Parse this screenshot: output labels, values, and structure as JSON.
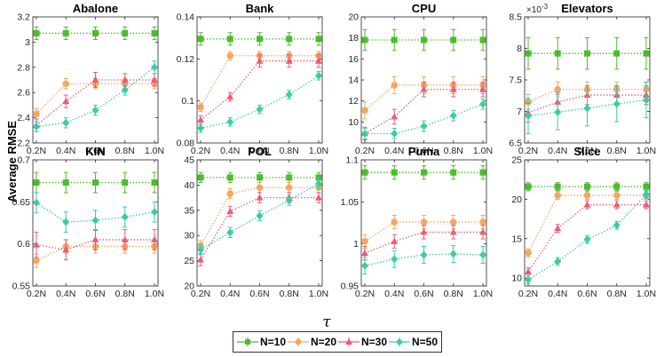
{
  "y_axis_label": "Average RMSE",
  "x_axis_label": "τ",
  "legend": [
    {
      "label": "N=10",
      "color": "#4dbb2e",
      "marker": "square"
    },
    {
      "label": "N=20",
      "color": "#f2a864",
      "marker": "circle"
    },
    {
      "label": "N=30",
      "color": "#ea5d77",
      "marker": "triangle"
    },
    {
      "label": "N=50",
      "color": "#3ccca4",
      "marker": "diamond"
    }
  ],
  "chart_data": [
    {
      "type": "line",
      "title": "Abalone",
      "x": [
        "0.2N",
        "0.4N",
        "0.6N",
        "0.8N",
        "1.0N"
      ],
      "ylim": [
        2.2,
        3.2
      ],
      "yticks": [
        "2.2",
        "2.4",
        "2.6",
        "2.8",
        "3",
        "3.2"
      ],
      "ytick_values": [
        2.2,
        2.4,
        2.6,
        2.8,
        3.0,
        3.2
      ],
      "series": [
        {
          "name": "N=10",
          "values": [
            3.07,
            3.07,
            3.07,
            3.07,
            3.07
          ],
          "err": [
            0.05,
            0.05,
            0.05,
            0.05,
            0.05
          ]
        },
        {
          "name": "N=20",
          "values": [
            2.43,
            2.67,
            2.67,
            2.67,
            2.67
          ],
          "err": [
            0.04,
            0.04,
            0.04,
            0.04,
            0.04
          ]
        },
        {
          "name": "N=30",
          "values": [
            2.34,
            2.53,
            2.7,
            2.7,
            2.7
          ],
          "err": [
            0.05,
            0.05,
            0.06,
            0.05,
            0.05
          ]
        },
        {
          "name": "N=50",
          "values": [
            2.33,
            2.36,
            2.46,
            2.62,
            2.8
          ],
          "err": [
            0.04,
            0.04,
            0.04,
            0.04,
            0.05
          ]
        }
      ]
    },
    {
      "type": "line",
      "title": "Bank",
      "x": [
        "0.2N",
        "0.4N",
        "0.6N",
        "0.8N",
        "1.0N"
      ],
      "ylim": [
        0.08,
        0.14
      ],
      "yticks": [
        "0.08",
        "0.1",
        "0.12",
        "0.14"
      ],
      "ytick_values": [
        0.08,
        0.1,
        0.12,
        0.14
      ],
      "series": [
        {
          "name": "N=10",
          "values": [
            0.1295,
            0.1295,
            0.1295,
            0.1295,
            0.1295
          ],
          "err": [
            0.003,
            0.003,
            0.003,
            0.003,
            0.003
          ]
        },
        {
          "name": "N=20",
          "values": [
            0.097,
            0.1215,
            0.1215,
            0.1215,
            0.1215
          ],
          "err": [
            0.002,
            0.002,
            0.002,
            0.002,
            0.002
          ]
        },
        {
          "name": "N=30",
          "values": [
            0.091,
            0.102,
            0.119,
            0.119,
            0.119
          ],
          "err": [
            0.002,
            0.002,
            0.003,
            0.003,
            0.003
          ]
        },
        {
          "name": "N=50",
          "values": [
            0.087,
            0.09,
            0.096,
            0.103,
            0.112
          ],
          "err": [
            0.002,
            0.002,
            0.002,
            0.002,
            0.002
          ]
        }
      ]
    },
    {
      "type": "line",
      "title": "CPU",
      "x": [
        "0.2N",
        "0.4N",
        "0.6N",
        "0.8N",
        "1.0N"
      ],
      "ylim": [
        8,
        20
      ],
      "yticks": [
        "10",
        "12",
        "14",
        "16",
        "18",
        "20"
      ],
      "ytick_values": [
        10,
        12,
        14,
        16,
        18,
        20
      ],
      "series": [
        {
          "name": "N=10",
          "values": [
            17.8,
            17.8,
            17.8,
            17.8,
            17.8
          ],
          "err": [
            1.0,
            1.0,
            1.0,
            1.0,
            1.0
          ]
        },
        {
          "name": "N=20",
          "values": [
            11.1,
            13.5,
            13.5,
            13.5,
            13.5
          ],
          "err": [
            0.8,
            0.8,
            0.8,
            0.8,
            0.8
          ]
        },
        {
          "name": "N=30",
          "values": [
            8.9,
            10.5,
            13.1,
            13.1,
            13.1
          ],
          "err": [
            0.6,
            0.7,
            0.7,
            0.7,
            0.7
          ]
        },
        {
          "name": "N=50",
          "values": [
            8.9,
            8.9,
            9.6,
            10.6,
            11.7
          ],
          "err": [
            0.5,
            0.5,
            0.5,
            0.5,
            0.5
          ]
        }
      ]
    },
    {
      "type": "line",
      "title": "Elevators",
      "x": [
        "0.2N",
        "0.4N",
        "0.6N",
        "0.8N",
        "1.0N"
      ],
      "ylim": [
        6.5,
        8.5
      ],
      "yticks": [
        "6.5",
        "7",
        "7.5",
        "8",
        "8.5"
      ],
      "ytick_values": [
        6.5,
        7.0,
        7.5,
        8.0,
        8.5
      ],
      "y_multiplier": "×10",
      "series": [
        {
          "name": "N=10",
          "values": [
            7.92,
            7.92,
            7.92,
            7.92,
            7.92
          ],
          "err": [
            0.25,
            0.25,
            0.25,
            0.25,
            0.25
          ]
        },
        {
          "name": "N=20",
          "values": [
            7.15,
            7.35,
            7.35,
            7.35,
            7.35
          ],
          "err": [
            0.12,
            0.12,
            0.12,
            0.12,
            0.12
          ]
        },
        {
          "name": "N=30",
          "values": [
            6.98,
            7.15,
            7.26,
            7.26,
            7.26
          ],
          "err": [
            0.15,
            0.15,
            0.15,
            0.15,
            0.15
          ]
        },
        {
          "name": "N=50",
          "values": [
            6.93,
            6.99,
            7.05,
            7.12,
            7.18
          ],
          "err": [
            0.28,
            0.28,
            0.28,
            0.28,
            0.28
          ]
        }
      ]
    },
    {
      "type": "line",
      "title": "KIN",
      "x": [
        "0.2N",
        "0.4N",
        "0.6N",
        "0.8N",
        "1.0N"
      ],
      "ylim": [
        0.55,
        0.7
      ],
      "yticks": [
        "0.55",
        "0.6",
        "0.65",
        "0.7"
      ],
      "ytick_values": [
        0.55,
        0.6,
        0.65,
        0.7
      ],
      "series": [
        {
          "name": "N=10",
          "values": [
            0.673,
            0.673,
            0.673,
            0.673,
            0.673
          ],
          "err": [
            0.012,
            0.012,
            0.012,
            0.012,
            0.012
          ]
        },
        {
          "name": "N=20",
          "values": [
            0.58,
            0.597,
            0.597,
            0.597,
            0.597
          ],
          "err": [
            0.008,
            0.008,
            0.008,
            0.008,
            0.008
          ]
        },
        {
          "name": "N=30",
          "values": [
            0.599,
            0.593,
            0.605,
            0.605,
            0.605
          ],
          "err": [
            0.015,
            0.012,
            0.012,
            0.012,
            0.012
          ]
        },
        {
          "name": "N=50",
          "values": [
            0.649,
            0.626,
            0.628,
            0.632,
            0.638
          ],
          "err": [
            0.012,
            0.012,
            0.012,
            0.012,
            0.012
          ]
        }
      ]
    },
    {
      "type": "line",
      "title": "POL",
      "x": [
        "0.2N",
        "0.4N",
        "0.6N",
        "0.8N",
        "1.0N"
      ],
      "ylim": [
        20,
        45
      ],
      "yticks": [
        "20",
        "25",
        "30",
        "35",
        "40",
        "45"
      ],
      "ytick_values": [
        20,
        25,
        30,
        35,
        40,
        45
      ],
      "series": [
        {
          "name": "N=10",
          "values": [
            41.5,
            41.5,
            41.5,
            41.5,
            41.5
          ],
          "err": [
            1.0,
            1.0,
            1.0,
            1.0,
            1.0
          ]
        },
        {
          "name": "N=20",
          "values": [
            28.0,
            38.3,
            39.5,
            39.5,
            39.5
          ],
          "err": [
            1.0,
            1.0,
            1.0,
            1.0,
            1.0
          ]
        },
        {
          "name": "N=30",
          "values": [
            25.2,
            34.8,
            37.5,
            37.5,
            37.5
          ],
          "err": [
            1.2,
            1.0,
            1.0,
            1.0,
            1.0
          ]
        },
        {
          "name": "N=50",
          "values": [
            27.2,
            30.6,
            33.9,
            37.0,
            40.3
          ],
          "err": [
            1.0,
            1.0,
            1.0,
            1.0,
            1.0
          ]
        }
      ]
    },
    {
      "type": "line",
      "title": "Puma",
      "x": [
        "0.2N",
        "0.4N",
        "0.6N",
        "0.8N",
        "1.0N"
      ],
      "ylim": [
        0.95,
        1.1
      ],
      "yticks": [
        "0.95",
        "1",
        "1.05",
        "1.1"
      ],
      "ytick_values": [
        0.95,
        1.0,
        1.05,
        1.1
      ],
      "series": [
        {
          "name": "N=10",
          "values": [
            1.085,
            1.085,
            1.085,
            1.085,
            1.085
          ],
          "err": [
            0.008,
            0.008,
            0.008,
            0.008,
            0.008
          ]
        },
        {
          "name": "N=20",
          "values": [
            1.003,
            1.026,
            1.026,
            1.026,
            1.026
          ],
          "err": [
            0.008,
            0.008,
            0.008,
            0.008,
            0.008
          ]
        },
        {
          "name": "N=30",
          "values": [
            0.989,
            1.003,
            1.014,
            1.014,
            1.014
          ],
          "err": [
            0.008,
            0.008,
            0.008,
            0.008,
            0.008
          ]
        },
        {
          "name": "N=50",
          "values": [
            0.974,
            0.982,
            0.987,
            0.988,
            0.987
          ],
          "err": [
            0.01,
            0.01,
            0.01,
            0.01,
            0.01
          ]
        }
      ]
    },
    {
      "type": "line",
      "title": "Slice",
      "x": [
        "0.2N",
        "0.4N",
        "0.6N",
        "0.8N",
        "1.0N"
      ],
      "ylim": [
        9,
        25
      ],
      "yticks": [
        "10",
        "15",
        "20",
        "25"
      ],
      "ytick_values": [
        10,
        15,
        20,
        25
      ],
      "series": [
        {
          "name": "N=10",
          "values": [
            21.6,
            21.6,
            21.6,
            21.6,
            21.6
          ],
          "err": [
            0.5,
            0.5,
            0.5,
            0.5,
            0.5
          ]
        },
        {
          "name": "N=20",
          "values": [
            13.2,
            20.5,
            20.5,
            20.5,
            20.5
          ],
          "err": [
            0.5,
            0.5,
            0.5,
            0.5,
            0.5
          ]
        },
        {
          "name": "N=30",
          "values": [
            10.8,
            16.3,
            19.3,
            19.3,
            19.3
          ],
          "err": [
            0.5,
            0.5,
            0.5,
            0.5,
            0.5
          ]
        },
        {
          "name": "N=50",
          "values": [
            9.8,
            12.1,
            14.9,
            16.7,
            20.6
          ],
          "err": [
            0.5,
            0.5,
            0.5,
            0.5,
            0.5
          ]
        }
      ]
    }
  ]
}
